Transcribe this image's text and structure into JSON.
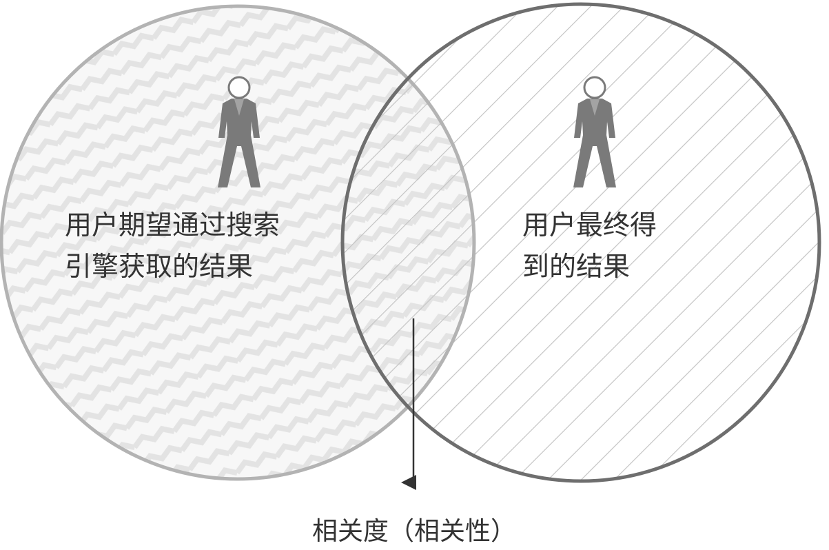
{
  "diagram": {
    "type": "venn",
    "left_set": {
      "lines": [
        "用户期望通过搜索",
        "引擎获取的结果"
      ],
      "icon": "person-icon"
    },
    "right_set": {
      "lines": [
        "用户最终得",
        "到的结果"
      ],
      "icon": "person-icon"
    },
    "intersection_caption": "相关度（相关性）",
    "colors": {
      "left_circle_stroke": "#b3b3b3",
      "right_circle_stroke": "#6e6e6e",
      "person_body": "#7a7a7a",
      "left_pattern": "#e6e6e6",
      "right_hatch": "#c4c4c4",
      "arrow": "#333333",
      "text": "#333333"
    }
  }
}
